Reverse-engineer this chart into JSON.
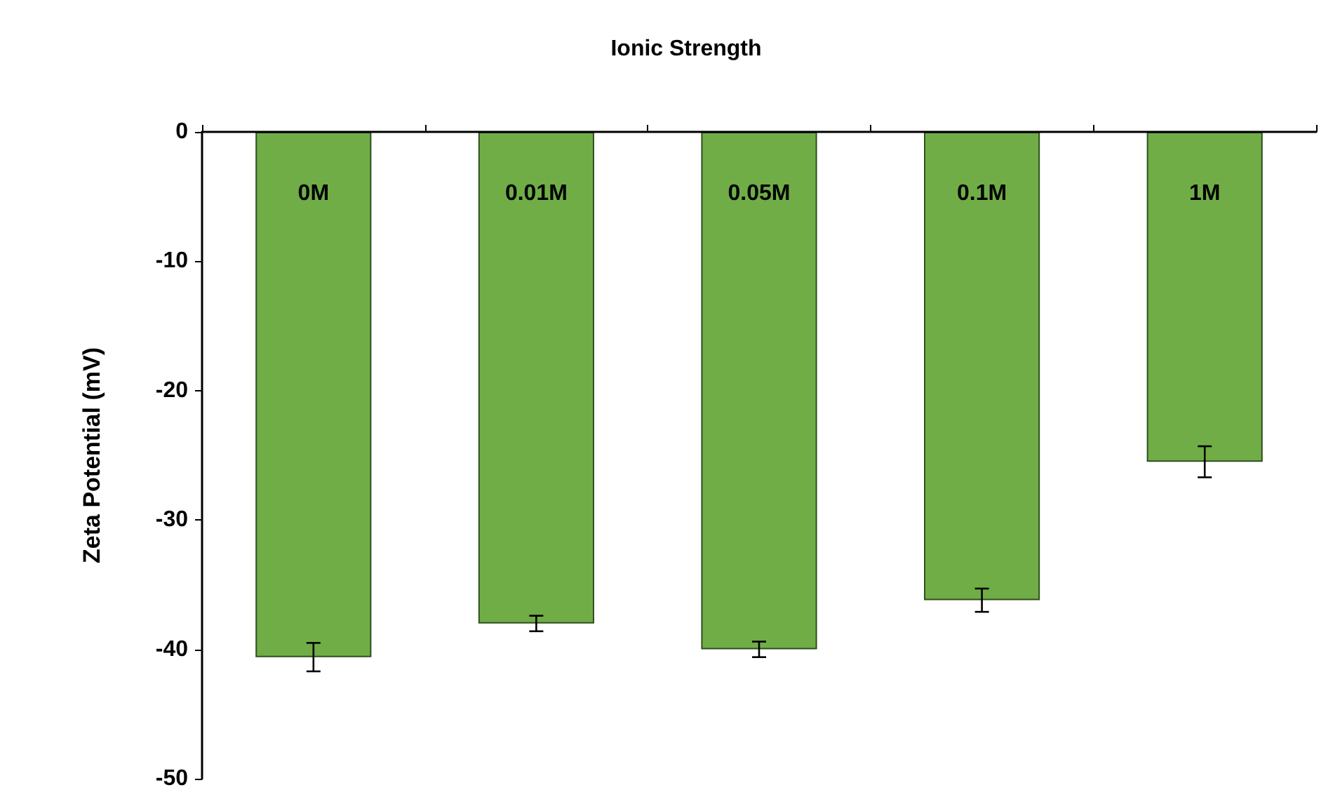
{
  "chart_data": {
    "type": "bar",
    "title": "Ionic Strength",
    "ylabel": "Zeta Potential (mV)",
    "categories": [
      "0M",
      "0.01M",
      "0.05M",
      "0.1M",
      "1M"
    ],
    "values": [
      -40.6,
      -38.0,
      -40.0,
      -36.2,
      -25.5
    ],
    "errors": [
      1.1,
      0.6,
      0.6,
      0.9,
      1.2
    ],
    "color": "#70ad47",
    "ylim": [
      -50,
      0
    ],
    "yticks": [
      -50,
      -40,
      -30,
      -20,
      -10,
      0
    ],
    "grid": false
  }
}
